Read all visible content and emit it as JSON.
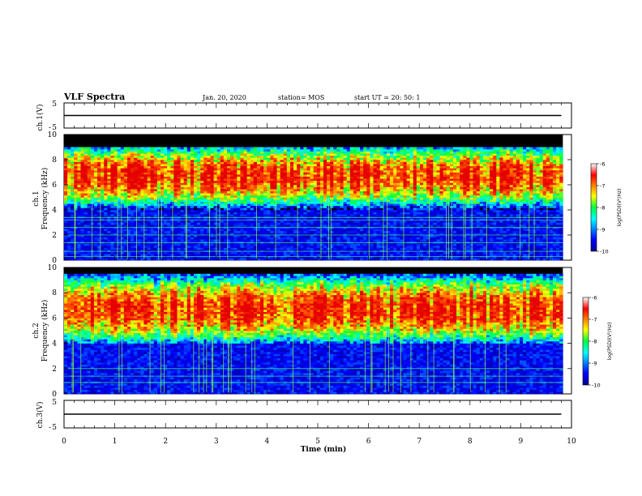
{
  "header": {
    "title": "VLF Spectra",
    "date": "Jan. 20, 2020",
    "station": "station= MOS",
    "start": "start UT =  20: 50: 1"
  },
  "chart_data": [
    {
      "type": "line",
      "panel": "ch1-waveform",
      "ylabel": "ch.1(V)",
      "ylim": [
        -5,
        5
      ],
      "yticks": [
        5,
        -5
      ],
      "xlim": [
        0,
        10
      ],
      "series": [
        {
          "x": [
            0.0,
            9.8
          ],
          "values": [
            0,
            0
          ]
        }
      ]
    },
    {
      "type": "heatmap",
      "panel": "ch1-spectrogram",
      "ylabel": "ch.1\nFrequency (kHz)",
      "ylim": [
        0,
        10
      ],
      "yticks": [
        "0",
        "2",
        "4",
        "6",
        "8",
        "10"
      ],
      "xlim": [
        0,
        9.83
      ],
      "band_khz": [
        4.0,
        9.0
      ],
      "peak_khz": 6.7,
      "background_level": -10,
      "peak_level": -6,
      "lines_khz": [
        0.3,
        0.7,
        1.4,
        2.0,
        2.6,
        3.2,
        3.4
      ],
      "colorbar": {
        "label": "log(PSD)(V²/Hz)",
        "ticks": [
          "-6",
          "-7",
          "-8",
          "-9",
          "-10"
        ],
        "range": [
          -10,
          -6
        ]
      }
    },
    {
      "type": "heatmap",
      "panel": "ch2-spectrogram",
      "ylabel": "ch.2\nFrequency (kHz)",
      "ylim": [
        0,
        10
      ],
      "yticks": [
        "0",
        "2",
        "4",
        "6",
        "8",
        "10"
      ],
      "xlim": [
        0,
        9.83
      ],
      "band_khz": [
        4.0,
        9.5
      ],
      "peak_khz": 6.7,
      "background_level": -10,
      "peak_level": -6,
      "lines_khz": [
        0.9,
        1.4,
        2.0
      ],
      "colorbar": {
        "label": "log(PSD)(V²/Hz)",
        "ticks": [
          "-6",
          "-7",
          "-8",
          "-9",
          "-10"
        ],
        "range": [
          -10,
          -6
        ]
      }
    },
    {
      "type": "line",
      "panel": "ch3-waveform",
      "ylabel": "ch.3(V)",
      "ylim": [
        -5,
        5
      ],
      "yticks": [
        5,
        -5
      ],
      "xlim": [
        0,
        10
      ],
      "series": [
        {
          "x": [
            0.0,
            9.8
          ],
          "values": [
            0,
            0
          ]
        }
      ]
    }
  ],
  "xaxis": {
    "label": "Time (min)",
    "ticks": [
      "0",
      "1",
      "2",
      "3",
      "4",
      "5",
      "6",
      "7",
      "8",
      "9",
      "10"
    ],
    "range": [
      0,
      10
    ]
  }
}
